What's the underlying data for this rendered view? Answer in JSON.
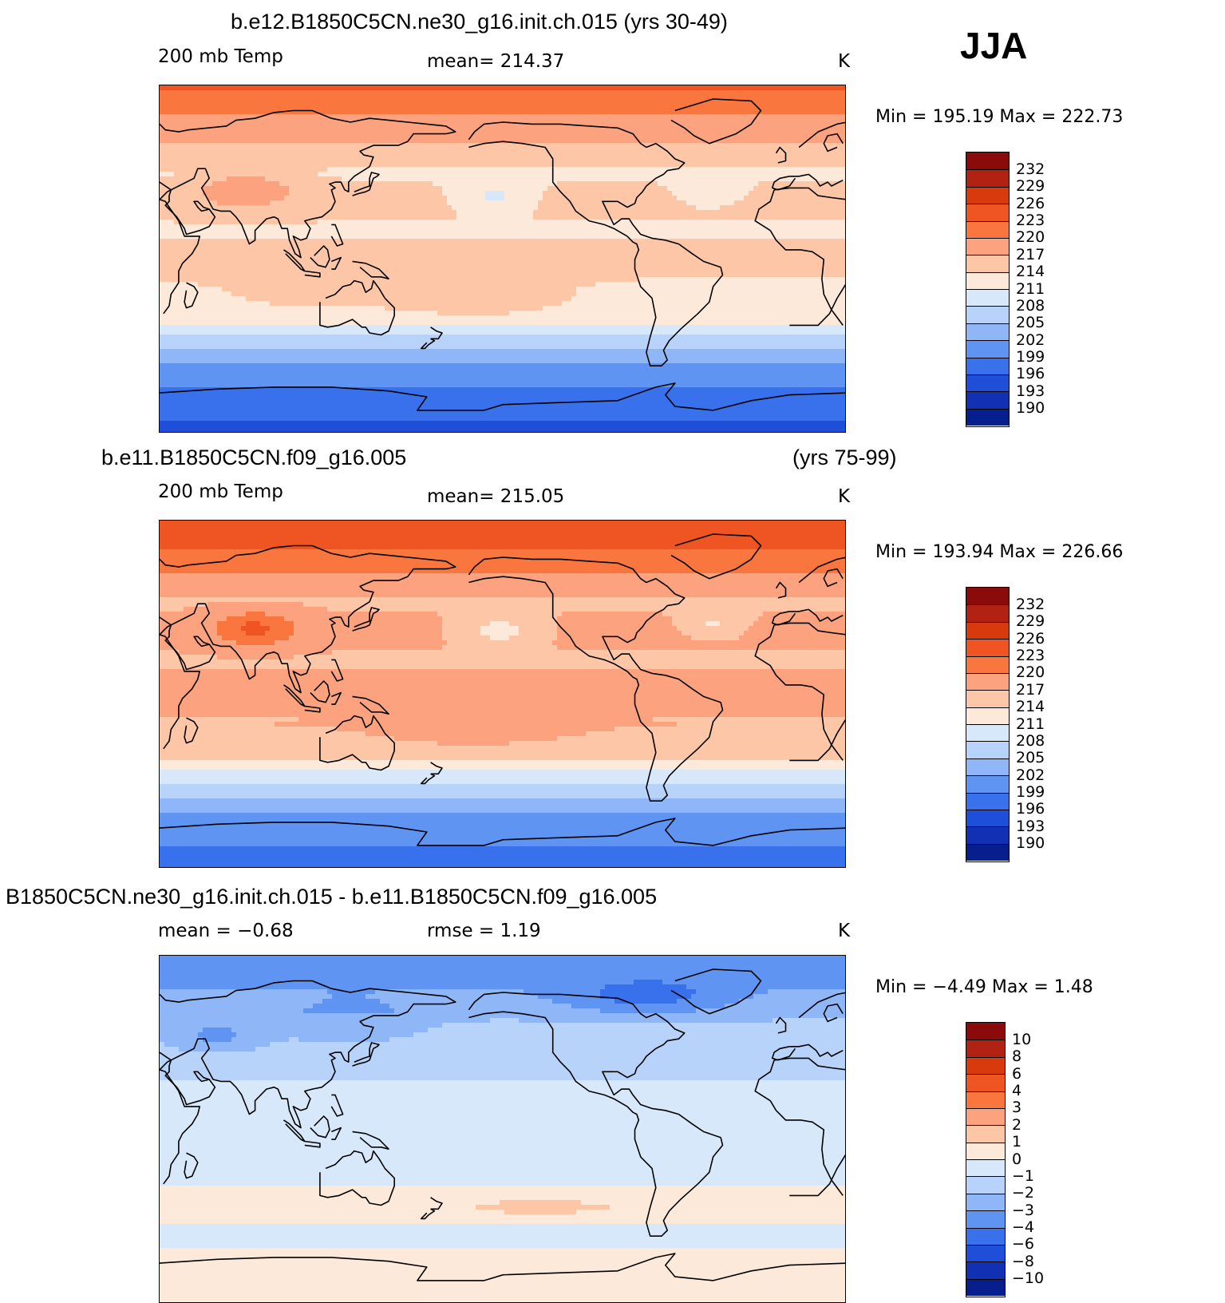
{
  "season": "JJA",
  "panels": [
    {
      "title": "b.e12.B1850C5CN.ne30_g16.init.ch.015 (yrs 30-49)",
      "title_right": "",
      "left_label": "200 mb Temp",
      "center_label": "mean= 214.37",
      "unit": "K",
      "minmax": "Min = 195.19 Max = 222.73",
      "colorbar_labels": [
        "232",
        "229",
        "226",
        "223",
        "220",
        "217",
        "214",
        "211",
        "208",
        "205",
        "202",
        "199",
        "196",
        "193",
        "190"
      ],
      "field": "a"
    },
    {
      "title": "b.e11.B1850C5CN.f09_g16.005",
      "title_right": "(yrs 75-99)",
      "left_label": "200 mb Temp",
      "center_label": "mean= 215.05",
      "unit": "K",
      "minmax": "Min = 193.94 Max = 226.66",
      "colorbar_labels": [
        "232",
        "229",
        "226",
        "223",
        "220",
        "217",
        "214",
        "211",
        "208",
        "205",
        "202",
        "199",
        "196",
        "193",
        "190"
      ],
      "field": "b"
    },
    {
      "title": "B1850C5CN.ne30_g16.init.ch.015 - b.e11.B1850C5CN.f09_g16.005",
      "title_right": "",
      "left_label": "mean = −0.68",
      "center_label": "rmse = 1.19",
      "unit": "K",
      "minmax": "Min = −4.49 Max = 1.48",
      "colorbar_labels": [
        "10",
        "8",
        "6",
        "4",
        "3",
        "2",
        "1",
        "0",
        "−1",
        "−2",
        "−3",
        "−4",
        "−6",
        "−8",
        "−10"
      ],
      "field": "diff"
    }
  ],
  "colorbar_colors": [
    "#8b0a0a",
    "#b22212",
    "#d93a0d",
    "#ef5522",
    "#f9763f",
    "#fca27e",
    "#fdc7a7",
    "#fde9d9",
    "#d7e8fb",
    "#b7d3fa",
    "#8fb6f7",
    "#6094f2",
    "#3970ec",
    "#1f4ed8",
    "#1230b4",
    "#071f8c"
  ],
  "chart_data": [
    {
      "type": "heatmap",
      "title": "b.e12.B1850C5CN.ne30_g16.init.ch.015 (yrs 30-49)",
      "variable": "200 mb Temp",
      "unit": "K",
      "mean": 214.37,
      "min": 195.19,
      "max": 222.73,
      "levels": [
        190,
        193,
        196,
        199,
        202,
        205,
        208,
        211,
        214,
        217,
        220,
        223,
        226,
        229,
        232
      ],
      "projection": "cylindrical equidistant, Pacific-centered",
      "lon_range": [
        30,
        390
      ],
      "lat_range": [
        -90,
        90
      ]
    },
    {
      "type": "heatmap",
      "title": "b.e11.B1850C5CN.f09_g16.005 (yrs 75-99)",
      "variable": "200 mb Temp",
      "unit": "K",
      "mean": 215.05,
      "min": 193.94,
      "max": 226.66,
      "levels": [
        190,
        193,
        196,
        199,
        202,
        205,
        208,
        211,
        214,
        217,
        220,
        223,
        226,
        229,
        232
      ],
      "projection": "cylindrical equidistant, Pacific-centered",
      "lon_range": [
        30,
        390
      ],
      "lat_range": [
        -90,
        90
      ]
    },
    {
      "type": "heatmap",
      "title": "B1850C5CN.ne30_g16.init.ch.015 - b.e11.B1850C5CN.f09_g16.005",
      "unit": "K",
      "mean": -0.68,
      "rmse": 1.19,
      "min": -4.49,
      "max": 1.48,
      "levels": [
        -10,
        -8,
        -6,
        -4,
        -3,
        -2,
        -1,
        0,
        1,
        2,
        3,
        4,
        6,
        8,
        10
      ],
      "projection": "cylindrical equidistant, Pacific-centered",
      "lon_range": [
        30,
        390
      ],
      "lat_range": [
        -90,
        90
      ]
    }
  ]
}
